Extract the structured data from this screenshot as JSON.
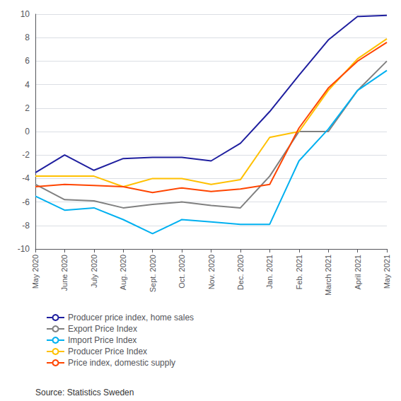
{
  "chart_data": {
    "type": "line",
    "categories": [
      "May 2020",
      "June 2020",
      "July 2020",
      "Aug. 2020",
      "Sept. 2020",
      "Oct. 2020",
      "Nov. 2020",
      "Dec. 2020",
      "Jan. 2021",
      "Feb. 2021",
      "March 2021",
      "April 2021",
      "May 2021"
    ],
    "series": [
      {
        "name": "Producer price index, home sales",
        "color": "#1F1F9F",
        "values": [
          -3.5,
          -2.0,
          -3.3,
          -2.3,
          -2.2,
          -2.2,
          -2.5,
          -1.0,
          1.7,
          4.8,
          7.8,
          9.8,
          9.9
        ]
      },
      {
        "name": "Export Price Index",
        "color": "#808080",
        "values": [
          -4.5,
          -5.8,
          -5.9,
          -6.5,
          -6.2,
          -6.0,
          -6.3,
          -6.5,
          -3.8,
          0.0,
          0.0,
          3.5,
          6.0
        ]
      },
      {
        "name": "Import Price Index",
        "color": "#00B0F0",
        "values": [
          -5.5,
          -6.7,
          -6.5,
          -7.5,
          -8.7,
          -7.5,
          -7.7,
          -7.9,
          -7.9,
          -2.5,
          0.2,
          3.5,
          5.2
        ]
      },
      {
        "name": "Producer Price Index",
        "color": "#FFC000",
        "values": [
          -3.8,
          -3.8,
          -3.8,
          -4.7,
          -4.0,
          -4.0,
          -4.5,
          -4.1,
          -0.5,
          0.0,
          3.5,
          6.2,
          7.9
        ]
      },
      {
        "name": "Price index, domestic supply",
        "color": "#FF4500",
        "values": [
          -4.7,
          -4.5,
          -4.6,
          -4.7,
          -5.2,
          -4.8,
          -5.1,
          -4.9,
          -4.5,
          0.3,
          3.7,
          6.0,
          7.6
        ]
      }
    ],
    "ylim": [
      -10,
      10
    ],
    "yticks": [
      -10,
      -8,
      -6,
      -4,
      -2,
      0,
      2,
      4,
      6,
      8,
      10
    ],
    "grid": true,
    "legend": "bottom",
    "annotations": [
      "Source: Statistics Sweden"
    ]
  }
}
